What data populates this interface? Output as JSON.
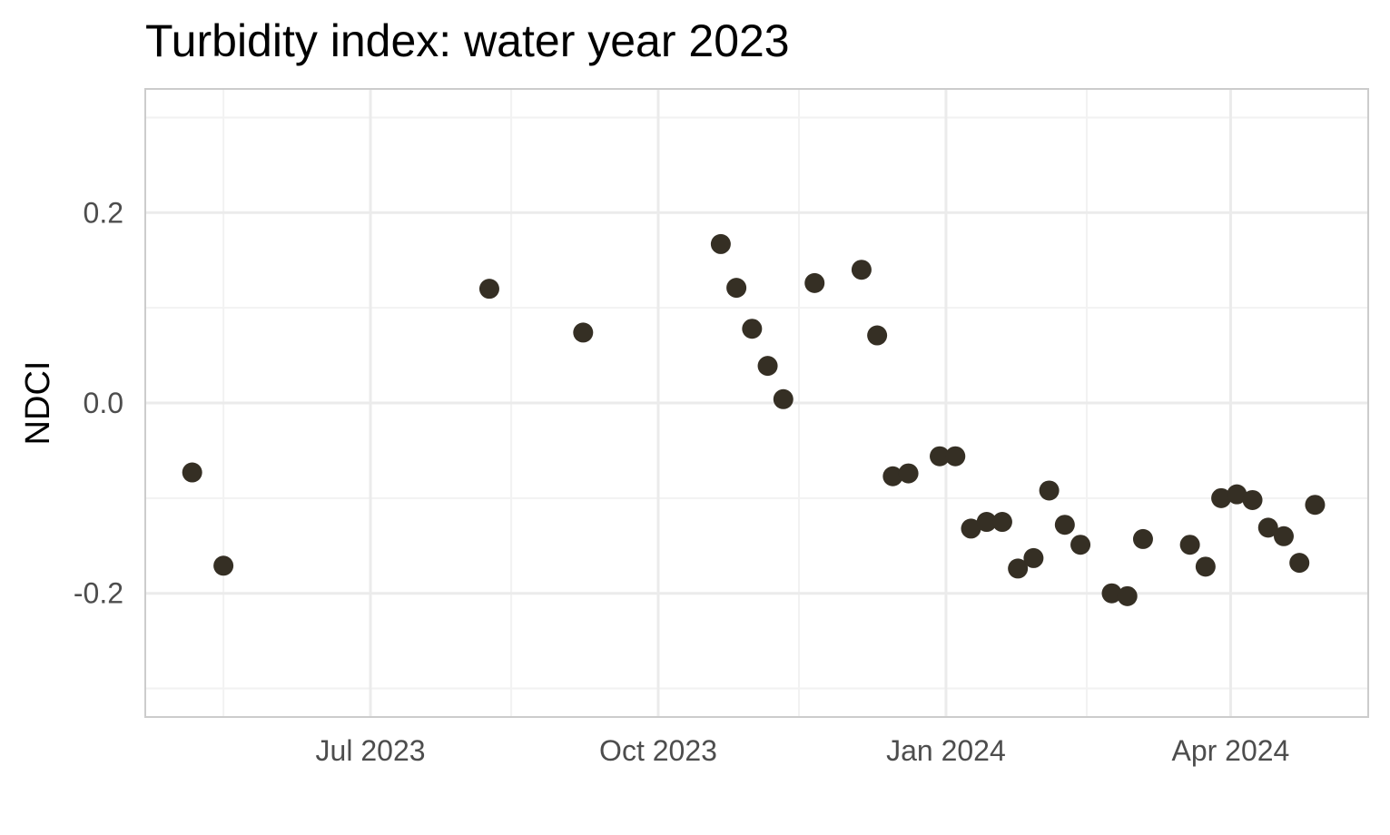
{
  "chart_data": {
    "type": "scatter",
    "title": "Turbidity index: water year 2023",
    "xlabel": "",
    "ylabel": "NDCI",
    "x_type": "date",
    "xlim": [
      "2023-04-20",
      "2024-05-15"
    ],
    "ylim": [
      -0.33,
      0.33
    ],
    "x_ticks": [
      {
        "value": "2023-07-01",
        "label": "Jul 2023"
      },
      {
        "value": "2023-10-01",
        "label": "Oct 2023"
      },
      {
        "value": "2024-01-01",
        "label": "Jan 2024"
      },
      {
        "value": "2024-04-01",
        "label": "Apr 2024"
      }
    ],
    "x_minor_ticks": [
      "2023-05-15",
      "2023-08-15",
      "2023-11-15",
      "2024-02-15",
      "2024-05-15"
    ],
    "y_ticks": [
      {
        "value": 0.2,
        "label": "0.2"
      },
      {
        "value": 0.0,
        "label": "0.0"
      },
      {
        "value": -0.2,
        "label": "-0.2"
      }
    ],
    "y_minor_ticks": [
      0.3,
      0.1,
      -0.1,
      -0.3
    ],
    "grid": true,
    "legend": "none",
    "point_color": "#352f24",
    "series": [
      {
        "points": [
          {
            "x": "2023-05-05",
            "y": -0.073
          },
          {
            "x": "2023-05-15",
            "y": -0.171
          },
          {
            "x": "2023-08-08",
            "y": 0.12
          },
          {
            "x": "2023-09-07",
            "y": 0.074
          },
          {
            "x": "2023-10-21",
            "y": 0.167
          },
          {
            "x": "2023-10-26",
            "y": 0.121
          },
          {
            "x": "2023-10-31",
            "y": 0.078
          },
          {
            "x": "2023-11-05",
            "y": 0.039
          },
          {
            "x": "2023-11-10",
            "y": 0.004
          },
          {
            "x": "2023-11-20",
            "y": 0.126
          },
          {
            "x": "2023-12-05",
            "y": 0.14
          },
          {
            "x": "2023-12-10",
            "y": 0.071
          },
          {
            "x": "2023-12-15",
            "y": -0.077
          },
          {
            "x": "2023-12-20",
            "y": -0.074
          },
          {
            "x": "2023-12-30",
            "y": -0.056
          },
          {
            "x": "2024-01-04",
            "y": -0.056
          },
          {
            "x": "2024-01-09",
            "y": -0.132
          },
          {
            "x": "2024-01-14",
            "y": -0.125
          },
          {
            "x": "2024-01-19",
            "y": -0.125
          },
          {
            "x": "2024-01-24",
            "y": -0.174
          },
          {
            "x": "2024-01-29",
            "y": -0.163
          },
          {
            "x": "2024-02-03",
            "y": -0.092
          },
          {
            "x": "2024-02-08",
            "y": -0.128
          },
          {
            "x": "2024-02-13",
            "y": -0.149
          },
          {
            "x": "2024-02-23",
            "y": -0.2
          },
          {
            "x": "2024-02-28",
            "y": -0.203
          },
          {
            "x": "2024-03-04",
            "y": -0.143
          },
          {
            "x": "2024-03-19",
            "y": -0.149
          },
          {
            "x": "2024-03-24",
            "y": -0.172
          },
          {
            "x": "2024-03-29",
            "y": -0.1
          },
          {
            "x": "2024-04-03",
            "y": -0.096
          },
          {
            "x": "2024-04-08",
            "y": -0.102
          },
          {
            "x": "2024-04-13",
            "y": -0.131
          },
          {
            "x": "2024-04-18",
            "y": -0.14
          },
          {
            "x": "2024-04-23",
            "y": -0.168
          },
          {
            "x": "2024-04-28",
            "y": -0.107
          }
        ]
      }
    ]
  }
}
